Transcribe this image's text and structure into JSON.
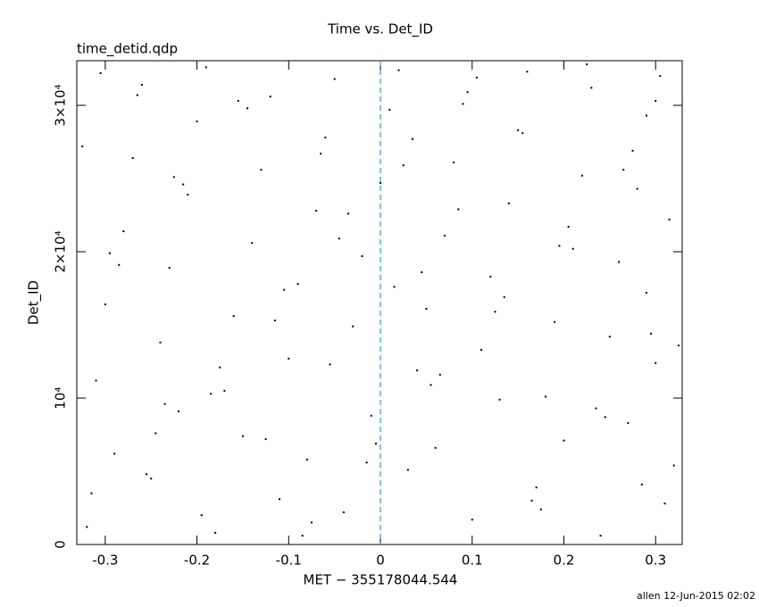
{
  "chart_data": {
    "type": "scatter",
    "title": "Time vs. Det_ID",
    "annotation": "time_detid.qdp",
    "footer": "allen 12-Jun-2015 02:02",
    "x_label": "MET − 355178044.544",
    "y_label": "Det_ID",
    "xlim": [
      -0.331,
      0.329
    ],
    "ylim": [
      0,
      33050
    ],
    "xticks": [
      -0.3,
      -0.2,
      -0.1,
      0,
      0.1,
      0.2,
      0.3
    ],
    "yticks": [
      0,
      {
        "value": 10000,
        "label": "10⁴"
      },
      {
        "value": 20000,
        "label": "2×10⁴"
      },
      {
        "value": 30000,
        "label": "3×10⁴"
      }
    ],
    "vline": {
      "x": 0,
      "color": "#2aa0a8"
    },
    "series": [
      {
        "color": "#000000",
        "x": [
          -0.32,
          -0.25,
          -0.18,
          -0.11,
          -0.04,
          0.03,
          0.1,
          0.17,
          0.24,
          0.31,
          -0.29,
          -0.22,
          -0.15,
          -0.08,
          -0.01,
          0.06,
          0.13,
          0.2,
          0.27,
          0.32,
          -0.31,
          -0.24,
          -0.17,
          -0.1,
          -0.03,
          0.04,
          0.11,
          0.18,
          0.25,
          0.3,
          -0.3,
          -0.23,
          -0.16,
          -0.09,
          -0.02,
          0.05,
          0.12,
          0.19,
          0.26,
          0.29,
          -0.28,
          -0.21,
          -0.14,
          -0.07,
          0.0,
          0.07,
          0.14,
          0.21,
          0.28,
          0.315,
          -0.27,
          -0.2,
          -0.13,
          -0.06,
          0.01,
          0.08,
          0.15,
          0.22,
          0.29,
          -0.325,
          -0.26,
          -0.19,
          -0.12,
          -0.05,
          0.02,
          0.09,
          0.16,
          0.23,
          0.3,
          -0.305,
          -0.315,
          -0.245,
          -0.175,
          -0.105,
          -0.035,
          0.035,
          0.105,
          0.175,
          0.245,
          0.325,
          -0.285,
          -0.215,
          -0.145,
          -0.075,
          -0.005,
          0.065,
          0.135,
          0.205,
          0.275,
          0.305,
          -0.255,
          -0.185,
          -0.115,
          -0.045,
          0.025,
          0.095,
          0.165,
          0.235,
          0.295,
          -0.295,
          -0.225,
          -0.155,
          -0.085,
          -0.015,
          0.055,
          0.125,
          0.195,
          0.265,
          -0.265,
          0.045,
          -0.195,
          -0.125,
          -0.055,
          0.015,
          0.085,
          0.155,
          0.225,
          0.285,
          -0.235,
          -0.065
        ],
        "values": [
          1200,
          4500,
          800,
          3100,
          2200,
          5100,
          1700,
          3900,
          600,
          2800,
          6200,
          9100,
          7400,
          5800,
          8800,
          6600,
          9900,
          7100,
          8300,
          5400,
          11200,
          13800,
          10500,
          12700,
          14900,
          11900,
          13300,
          10100,
          14200,
          12400,
          16400,
          18900,
          15600,
          17800,
          19700,
          16100,
          18300,
          15200,
          19300,
          17200,
          21400,
          23900,
          20600,
          22800,
          24700,
          21100,
          23300,
          20200,
          24300,
          22200,
          26400,
          28900,
          25600,
          27800,
          29700,
          26100,
          28300,
          25200,
          29300,
          27200,
          31400,
          32600,
          30600,
          31800,
          32400,
          30100,
          32300,
          31200,
          30300,
          32200,
          3500,
          7600,
          12100,
          17400,
          22600,
          27700,
          31900,
          2400,
          8700,
          13600,
          19100,
          24600,
          29800,
          1500,
          6900,
          11600,
          16900,
          21700,
          26900,
          32000,
          4800,
          10300,
          15300,
          20900,
          25900,
          30900,
          3000,
          9300,
          14400,
          19900,
          25100,
          30300,
          600,
          5600,
          10900,
          15900,
          20400,
          25600,
          30700,
          18600,
          2000,
          7200,
          12300,
          17600,
          22900,
          28100,
          32800,
          4100,
          9600,
          26700
        ]
      }
    ]
  }
}
